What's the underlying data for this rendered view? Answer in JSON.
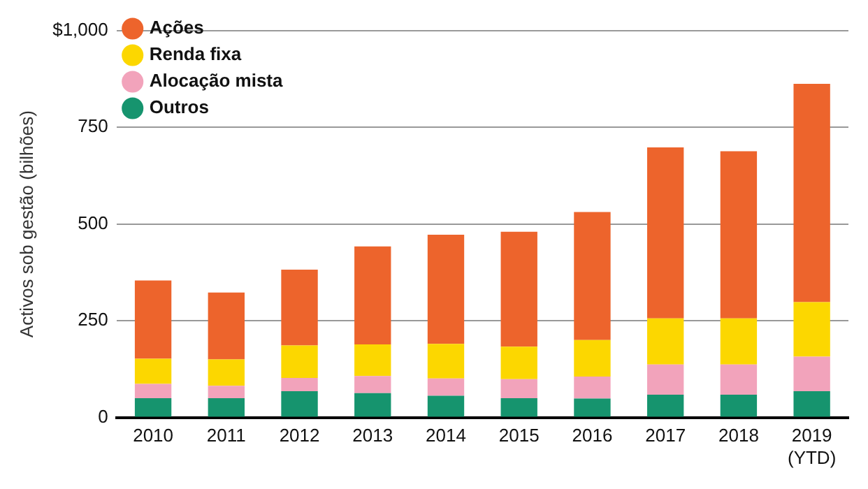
{
  "chart_data": {
    "type": "bar",
    "stacked": true,
    "ylabel": "Activos sob gestão (bilhões)",
    "categories": [
      "2010",
      "2011",
      "2012",
      "2013",
      "2014",
      "2015",
      "2016",
      "2017",
      "2018",
      "2019 (YTD)"
    ],
    "series": [
      {
        "name": "Outros",
        "color": "#16946e",
        "values": [
          50,
          50,
          68,
          63,
          56,
          50,
          49,
          59,
          59,
          68
        ]
      },
      {
        "name": "Alocação mista",
        "color": "#f2a3bb",
        "values": [
          37,
          32,
          34,
          44,
          45,
          49,
          57,
          78,
          78,
          89
        ]
      },
      {
        "name": "Renda fixa",
        "color": "#fcd700",
        "values": [
          65,
          68,
          84,
          82,
          89,
          84,
          94,
          119,
          119,
          141
        ]
      },
      {
        "name": "Ações",
        "color": "#ed642c",
        "values": [
          202,
          173,
          196,
          253,
          282,
          297,
          331,
          442,
          432,
          564
        ]
      }
    ],
    "ylim": [
      0,
      1000
    ],
    "yticks": [
      0,
      250,
      500,
      750,
      {
        "value": 1000,
        "label": "$1,000"
      }
    ],
    "grid": "y",
    "legend": "top left"
  }
}
